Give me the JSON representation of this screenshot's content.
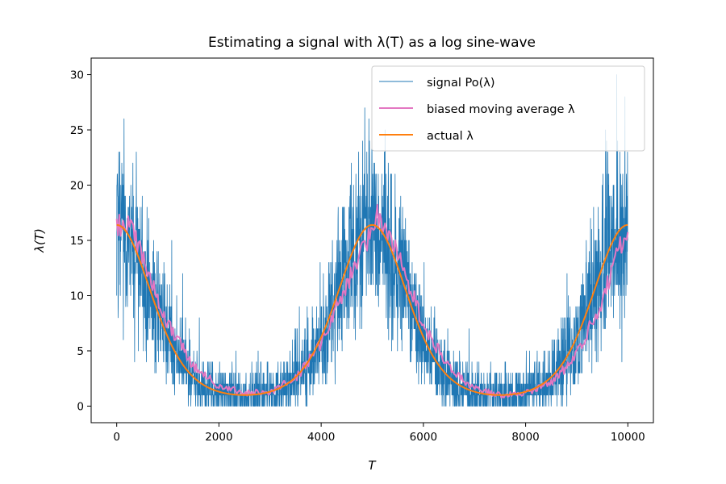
{
  "chart_data": {
    "type": "line",
    "title": "Estimating a signal with λ(T) as a log sine-wave",
    "xlabel": "T",
    "ylabel": "λ(T)",
    "xlim": [
      -500,
      10500
    ],
    "ylim": [
      -1.5,
      31.5
    ],
    "xticks": [
      0,
      2000,
      4000,
      6000,
      8000,
      10000
    ],
    "yticks": [
      0,
      5,
      10,
      15,
      20,
      25,
      30
    ],
    "grid": false,
    "legend_position": "upper right",
    "model": {
      "lambda_min": 1.0,
      "lambda_max": 16.4,
      "period": 5000,
      "x_start": 0,
      "x_end": 10000,
      "signal_max_observed": 30
    },
    "series": [
      {
        "name": "signal Po(λ)",
        "color": "#1f77b4",
        "style": "thin-line",
        "description": "Poisson samples around actual λ",
        "sample_points": [
          {
            "x": 0,
            "y": 16
          },
          {
            "x": 250,
            "y": 27
          },
          {
            "x": 500,
            "y": 12
          },
          {
            "x": 1000,
            "y": 5
          },
          {
            "x": 1500,
            "y": 2
          },
          {
            "x": 2500,
            "y": 1
          },
          {
            "x": 3500,
            "y": 2
          },
          {
            "x": 4000,
            "y": 6
          },
          {
            "x": 4500,
            "y": 12
          },
          {
            "x": 5000,
            "y": 27
          },
          {
            "x": 5500,
            "y": 13
          },
          {
            "x": 6000,
            "y": 6
          },
          {
            "x": 7000,
            "y": 1
          },
          {
            "x": 8000,
            "y": 1
          },
          {
            "x": 9000,
            "y": 5
          },
          {
            "x": 9500,
            "y": 12
          },
          {
            "x": 9900,
            "y": 27
          }
        ]
      },
      {
        "name": "biased moving average λ",
        "color": "#e377c2",
        "style": "line",
        "points": [
          {
            "x": 0,
            "y": 16.2
          },
          {
            "x": 150,
            "y": 16.6
          },
          {
            "x": 300,
            "y": 15.9
          },
          {
            "x": 600,
            "y": 12.3
          },
          {
            "x": 1000,
            "y": 7.4
          },
          {
            "x": 1500,
            "y": 3.6
          },
          {
            "x": 2000,
            "y": 1.8
          },
          {
            "x": 2500,
            "y": 1.2
          },
          {
            "x": 3000,
            "y": 1.3
          },
          {
            "x": 3500,
            "y": 2.5
          },
          {
            "x": 4000,
            "y": 5.6
          },
          {
            "x": 4500,
            "y": 11.0
          },
          {
            "x": 5000,
            "y": 16.0
          },
          {
            "x": 5100,
            "y": 17.2
          },
          {
            "x": 5300,
            "y": 15.6
          },
          {
            "x": 5600,
            "y": 12.6
          },
          {
            "x": 6000,
            "y": 7.4
          },
          {
            "x": 6500,
            "y": 3.4
          },
          {
            "x": 7000,
            "y": 1.6
          },
          {
            "x": 7500,
            "y": 1.0
          },
          {
            "x": 8000,
            "y": 1.2
          },
          {
            "x": 8500,
            "y": 2.1
          },
          {
            "x": 9000,
            "y": 4.6
          },
          {
            "x": 9500,
            "y": 9.6
          },
          {
            "x": 9800,
            "y": 13.9
          },
          {
            "x": 10000,
            "y": 16.0
          }
        ]
      },
      {
        "name": "actual λ",
        "color": "#ff7f0e",
        "style": "line",
        "formula": "exp(ln(1) + (ln(16.4)-ln(1))*(1+cos(2*pi*T/5000))/2)"
      }
    ]
  }
}
